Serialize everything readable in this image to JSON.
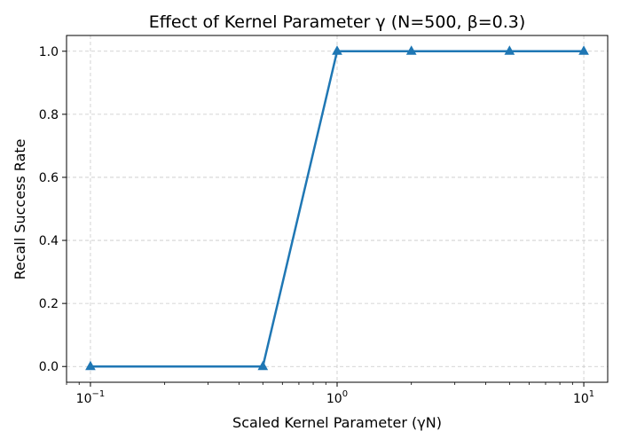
{
  "colors": {
    "series": "#1f77b4",
    "grid": "#c8c8c8",
    "axis": "#000000"
  },
  "chart_data": {
    "type": "line",
    "title": "Effect of Kernel Parameter γ (N=500, β=0.3)",
    "xlabel": "Scaled Kernel Parameter (γN)",
    "ylabel": "Recall Success Rate",
    "xscale": "log",
    "xlim": [
      0.08,
      12.5
    ],
    "ylim": [
      -0.05,
      1.05
    ],
    "grid": true,
    "x_ticks": [
      {
        "value": 0.1,
        "base": "10",
        "exp": "−1"
      },
      {
        "value": 1,
        "base": "10",
        "exp": "0"
      },
      {
        "value": 10,
        "base": "10",
        "exp": "1"
      }
    ],
    "y_ticks": [
      {
        "value": 0.0,
        "label": "0.0"
      },
      {
        "value": 0.2,
        "label": "0.2"
      },
      {
        "value": 0.4,
        "label": "0.4"
      },
      {
        "value": 0.6,
        "label": "0.6"
      },
      {
        "value": 0.8,
        "label": "0.8"
      },
      {
        "value": 1.0,
        "label": "1.0"
      }
    ],
    "series": [
      {
        "name": "Recall success rate",
        "marker": "triangle",
        "x": [
          0.1,
          0.5,
          1,
          2,
          5,
          10
        ],
        "y": [
          0.0,
          0.0,
          1.0,
          1.0,
          1.0,
          1.0
        ]
      }
    ]
  }
}
